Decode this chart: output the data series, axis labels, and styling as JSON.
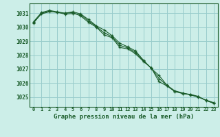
{
  "title": "Graphe pression niveau de la mer (hPa)",
  "background_color": "#cceee8",
  "grid_color": "#99cccc",
  "line_color": "#1a5c2a",
  "xlim": [
    -0.5,
    23.5
  ],
  "ylim": [
    1024.3,
    1031.7
  ],
  "yticks": [
    1025,
    1026,
    1027,
    1028,
    1029,
    1030,
    1031
  ],
  "xticks": [
    0,
    1,
    2,
    3,
    4,
    5,
    6,
    7,
    8,
    9,
    10,
    11,
    12,
    13,
    14,
    15,
    16,
    17,
    18,
    19,
    20,
    21,
    22,
    23
  ],
  "series": [
    [
      1030.3,
      1031.0,
      1031.15,
      1031.05,
      1031.0,
      1031.05,
      1030.8,
      1030.35,
      1030.0,
      1029.45,
      1029.25,
      1028.55,
      1028.45,
      1028.1,
      1027.55,
      1027.1,
      1026.1,
      1025.8,
      1025.4,
      1025.25,
      1025.2,
      1025.05,
      1024.75,
      1024.55
    ],
    [
      1030.4,
      1031.05,
      1031.2,
      1031.1,
      1031.0,
      1031.1,
      1030.95,
      1030.55,
      1030.1,
      1029.8,
      1029.4,
      1028.85,
      1028.6,
      1028.3,
      1027.65,
      1027.05,
      1026.55,
      1025.85,
      1025.45,
      1025.3,
      1025.15,
      1025.0,
      1024.78,
      1024.6
    ],
    [
      1030.35,
      1030.95,
      1031.1,
      1031.08,
      1030.93,
      1030.98,
      1030.88,
      1030.45,
      1030.05,
      1029.6,
      1029.32,
      1028.7,
      1028.52,
      1028.2,
      1027.6,
      1027.08,
      1026.33,
      1025.83,
      1025.42,
      1025.27,
      1025.17,
      1025.03,
      1024.77,
      1024.57
    ]
  ]
}
